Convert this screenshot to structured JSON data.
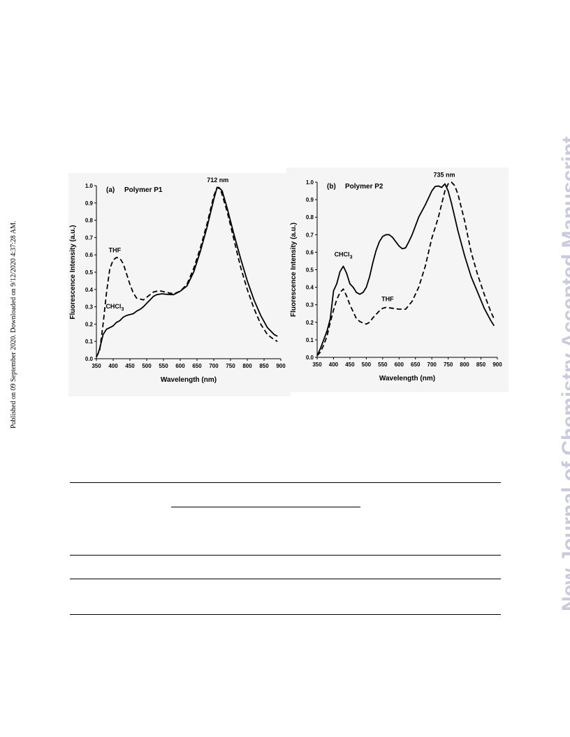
{
  "page": {
    "side_left": "Published on 09 September 2020. Downloaded on 9/12/2020 4:37:28 AM.",
    "side_right": "New Journal of Chemistry Accepted Manuscript"
  },
  "chart_data": [
    {
      "type": "line",
      "title": "(a)",
      "subtitle": "Polymer P1",
      "xlabel": "Wavelength (nm)",
      "ylabel": "Fluorescence Intensity (a.u.)",
      "xlim": [
        350,
        900
      ],
      "ylim": [
        0.0,
        1.0
      ],
      "xticks": [
        "350",
        "400",
        "450",
        "500",
        "550",
        "600",
        "650",
        "700",
        "750",
        "800",
        "850",
        "900"
      ],
      "yticks": [
        "0.0",
        "0.1",
        "0.2",
        "0.3",
        "0.4",
        "0.5",
        "0.6",
        "0.7",
        "0.8",
        "0.9",
        "1.0"
      ],
      "grid": false,
      "series": [
        {
          "name": "CHCl3",
          "style": "solid",
          "points": [
            [
              350,
              0.01
            ],
            [
              355,
              0.03
            ],
            [
              360,
              0.06
            ],
            [
              365,
              0.1
            ],
            [
              370,
              0.14
            ],
            [
              380,
              0.17
            ],
            [
              390,
              0.18
            ],
            [
              400,
              0.19
            ],
            [
              410,
              0.21
            ],
            [
              420,
              0.22
            ],
            [
              430,
              0.24
            ],
            [
              440,
              0.25
            ],
            [
              450,
              0.255
            ],
            [
              460,
              0.26
            ],
            [
              470,
              0.275
            ],
            [
              480,
              0.285
            ],
            [
              490,
              0.3
            ],
            [
              500,
              0.32
            ],
            [
              510,
              0.34
            ],
            [
              520,
              0.36
            ],
            [
              530,
              0.37
            ],
            [
              545,
              0.375
            ],
            [
              560,
              0.372
            ],
            [
              580,
              0.37
            ],
            [
              600,
              0.39
            ],
            [
              620,
              0.42
            ],
            [
              640,
              0.5
            ],
            [
              660,
              0.62
            ],
            [
              680,
              0.76
            ],
            [
              700,
              0.92
            ],
            [
              710,
              0.99
            ],
            [
              715,
              0.99
            ],
            [
              725,
              0.97
            ],
            [
              740,
              0.87
            ],
            [
              760,
              0.72
            ],
            [
              780,
              0.58
            ],
            [
              800,
              0.45
            ],
            [
              820,
              0.34
            ],
            [
              840,
              0.25
            ],
            [
              860,
              0.18
            ],
            [
              880,
              0.14
            ],
            [
              890,
              0.13
            ]
          ]
        },
        {
          "name": "THF",
          "style": "dashed",
          "points": [
            [
              350,
              0.01
            ],
            [
              360,
              0.05
            ],
            [
              370,
              0.2
            ],
            [
              380,
              0.38
            ],
            [
              390,
              0.52
            ],
            [
              400,
              0.57
            ],
            [
              410,
              0.585
            ],
            [
              420,
              0.58
            ],
            [
              430,
              0.55
            ],
            [
              440,
              0.49
            ],
            [
              450,
              0.43
            ],
            [
              460,
              0.38
            ],
            [
              470,
              0.35
            ],
            [
              480,
              0.345
            ],
            [
              490,
              0.34
            ],
            [
              500,
              0.355
            ],
            [
              510,
              0.37
            ],
            [
              520,
              0.385
            ],
            [
              530,
              0.39
            ],
            [
              540,
              0.392
            ],
            [
              560,
              0.383
            ],
            [
              580,
              0.375
            ],
            [
              600,
              0.39
            ],
            [
              620,
              0.43
            ],
            [
              640,
              0.52
            ],
            [
              660,
              0.64
            ],
            [
              680,
              0.78
            ],
            [
              700,
              0.94
            ],
            [
              710,
              0.99
            ],
            [
              720,
              0.98
            ],
            [
              740,
              0.85
            ],
            [
              760,
              0.69
            ],
            [
              780,
              0.53
            ],
            [
              800,
              0.4
            ],
            [
              820,
              0.29
            ],
            [
              840,
              0.2
            ],
            [
              860,
              0.14
            ],
            [
              880,
              0.11
            ],
            [
              890,
              0.1
            ]
          ]
        }
      ],
      "annotations": [
        {
          "text": "712 nm",
          "x": 712,
          "y": 1.02
        },
        {
          "text": "THF",
          "x": 405,
          "y": 0.615
        },
        {
          "text": "CHCl3",
          "x": 405,
          "y": 0.29
        }
      ]
    },
    {
      "type": "line",
      "title": "(b)",
      "subtitle": "Polymer P2",
      "xlabel": "Wavelength (nm)",
      "ylabel": "Fluorescence Intensity (a.u.)",
      "xlim": [
        350,
        900
      ],
      "ylim": [
        0.0,
        1.0
      ],
      "xticks": [
        "350",
        "400",
        "450",
        "500",
        "550",
        "600",
        "650",
        "700",
        "750",
        "800",
        "850",
        "900"
      ],
      "yticks": [
        "0.0",
        "0.1",
        "0.2",
        "0.3",
        "0.4",
        "0.5",
        "0.6",
        "0.7",
        "0.8",
        "0.9",
        "1.0"
      ],
      "grid": false,
      "series": [
        {
          "name": "CHCl3",
          "style": "solid",
          "points": [
            [
              350,
              0.01
            ],
            [
              360,
              0.05
            ],
            [
              370,
              0.1
            ],
            [
              380,
              0.15
            ],
            [
              390,
              0.22
            ],
            [
              400,
              0.38
            ],
            [
              410,
              0.42
            ],
            [
              420,
              0.49
            ],
            [
              430,
              0.52
            ],
            [
              440,
              0.48
            ],
            [
              450,
              0.42
            ],
            [
              460,
              0.4
            ],
            [
              470,
              0.37
            ],
            [
              480,
              0.36
            ],
            [
              490,
              0.37
            ],
            [
              500,
              0.4
            ],
            [
              510,
              0.46
            ],
            [
              520,
              0.54
            ],
            [
              530,
              0.61
            ],
            [
              540,
              0.66
            ],
            [
              550,
              0.69
            ],
            [
              560,
              0.7
            ],
            [
              570,
              0.7
            ],
            [
              580,
              0.685
            ],
            [
              590,
              0.66
            ],
            [
              600,
              0.635
            ],
            [
              610,
              0.62
            ],
            [
              620,
              0.625
            ],
            [
              630,
              0.66
            ],
            [
              640,
              0.7
            ],
            [
              650,
              0.75
            ],
            [
              660,
              0.8
            ],
            [
              680,
              0.87
            ],
            [
              700,
              0.95
            ],
            [
              710,
              0.975
            ],
            [
              720,
              0.978
            ],
            [
              730,
              0.97
            ],
            [
              740,
              0.99
            ],
            [
              750,
              0.95
            ],
            [
              760,
              0.88
            ],
            [
              780,
              0.72
            ],
            [
              800,
              0.58
            ],
            [
              820,
              0.46
            ],
            [
              840,
              0.37
            ],
            [
              860,
              0.28
            ],
            [
              880,
              0.21
            ],
            [
              890,
              0.18
            ]
          ]
        },
        {
          "name": "THF",
          "style": "dashed",
          "points": [
            [
              350,
              0.01
            ],
            [
              360,
              0.03
            ],
            [
              370,
              0.07
            ],
            [
              380,
              0.12
            ],
            [
              390,
              0.2
            ],
            [
              400,
              0.27
            ],
            [
              410,
              0.33
            ],
            [
              420,
              0.37
            ],
            [
              430,
              0.39
            ],
            [
              440,
              0.35
            ],
            [
              450,
              0.3
            ],
            [
              460,
              0.26
            ],
            [
              470,
              0.22
            ],
            [
              480,
              0.205
            ],
            [
              490,
              0.195
            ],
            [
              500,
              0.19
            ],
            [
              510,
              0.2
            ],
            [
              520,
              0.225
            ],
            [
              530,
              0.245
            ],
            [
              540,
              0.265
            ],
            [
              550,
              0.28
            ],
            [
              560,
              0.285
            ],
            [
              580,
              0.28
            ],
            [
              600,
              0.275
            ],
            [
              620,
              0.275
            ],
            [
              640,
              0.32
            ],
            [
              660,
              0.4
            ],
            [
              680,
              0.52
            ],
            [
              700,
              0.68
            ],
            [
              720,
              0.8
            ],
            [
              740,
              0.95
            ],
            [
              750,
              0.99
            ],
            [
              760,
              1.0
            ],
            [
              770,
              0.98
            ],
            [
              780,
              0.93
            ],
            [
              800,
              0.78
            ],
            [
              820,
              0.6
            ],
            [
              840,
              0.47
            ],
            [
              860,
              0.36
            ],
            [
              880,
              0.26
            ],
            [
              890,
              0.22
            ]
          ]
        }
      ],
      "annotations": [
        {
          "text": "735 nm",
          "x": 738,
          "y": 1.03
        },
        {
          "text": "CHCl3",
          "x": 430,
          "y": 0.575
        },
        {
          "text": "THF",
          "x": 565,
          "y": 0.32
        }
      ]
    }
  ]
}
